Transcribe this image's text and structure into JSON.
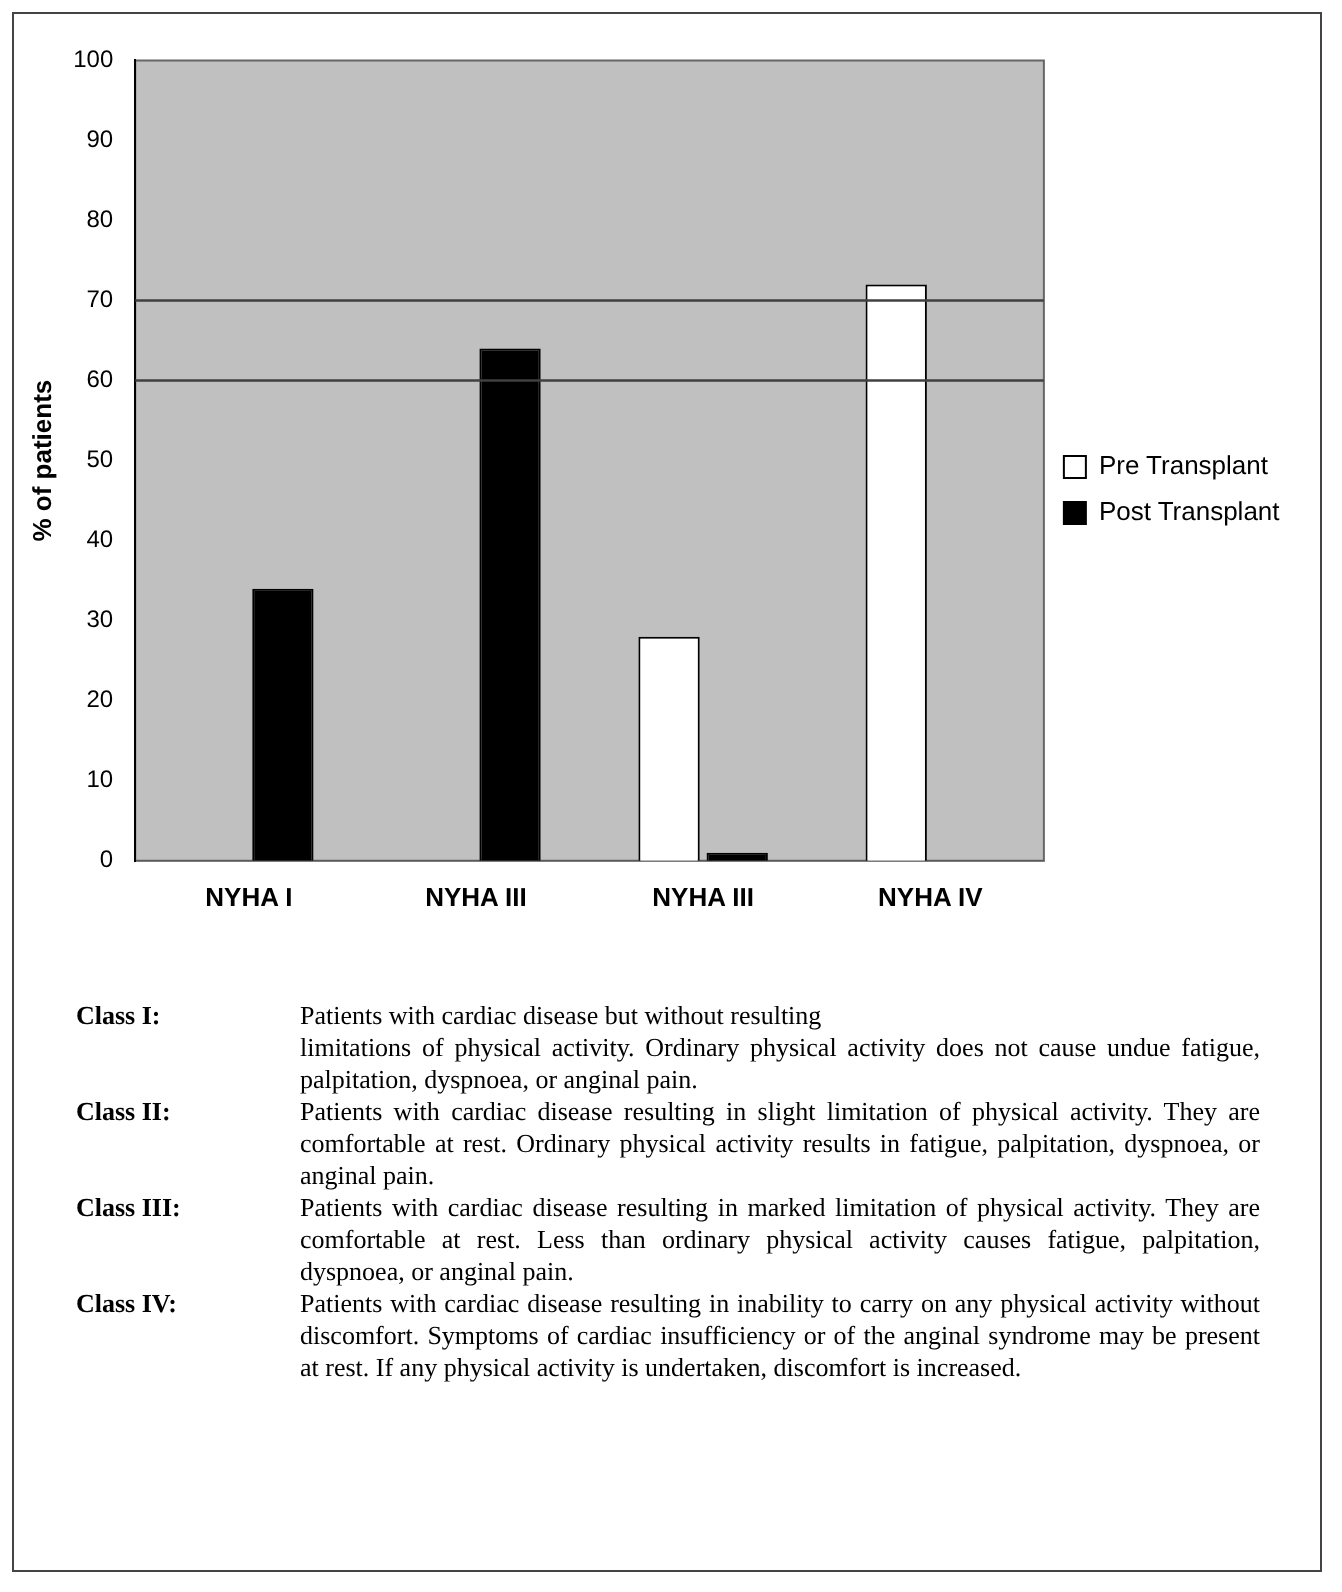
{
  "chart_data": {
    "type": "bar",
    "ylabel": "% of patients",
    "categories": [
      "NYHA I",
      "NYHA III",
      "NYHA III",
      "NYHA IV"
    ],
    "series": [
      {
        "name": "Pre Transplant",
        "color": "#ffffff",
        "values": [
          0,
          0,
          28,
          72
        ]
      },
      {
        "name": "Post Transplant",
        "color": "#000000",
        "values": [
          34,
          64,
          1,
          0
        ]
      }
    ],
    "ylim": [
      0,
      100
    ],
    "yticks": [
      0,
      10,
      20,
      30,
      40,
      50,
      60,
      70,
      80,
      90,
      100
    ],
    "grid": false,
    "legend": "right",
    "ref_lines": [
      {
        "axis": "y",
        "value": 60,
        "color": "#404040"
      },
      {
        "axis": "y",
        "value": 70,
        "color": "#404040"
      }
    ],
    "annotations": [
      "Class I:",
      "Patients with cardiac disease but without resulting\nlimitations of physical activity. Ordinary physical activity does not cause undue fatigue, palpitation, dyspnoea, or anginal pain.",
      "Class II:",
      "Patients with cardiac disease resulting in slight limitation of physical activity. They are comfortable at rest. Ordinary physical activity results in fatigue, palpitation, dyspnoea, or anginal pain.",
      "Class III:",
      "Patients with cardiac disease resulting in marked limitation of physical activity. They are comfortable at rest. Less than ordinary physical activity causes fatigue, palpitation, dyspnoea, or anginal pain.",
      "Class IV:",
      "Patients with cardiac disease resulting in inability to carry on any physical activity without discomfort. Symptoms of cardiac insufficiency or of the anginal syndrome may be present at rest. If any physical activity is undertaken, discomfort is increased."
    ]
  }
}
